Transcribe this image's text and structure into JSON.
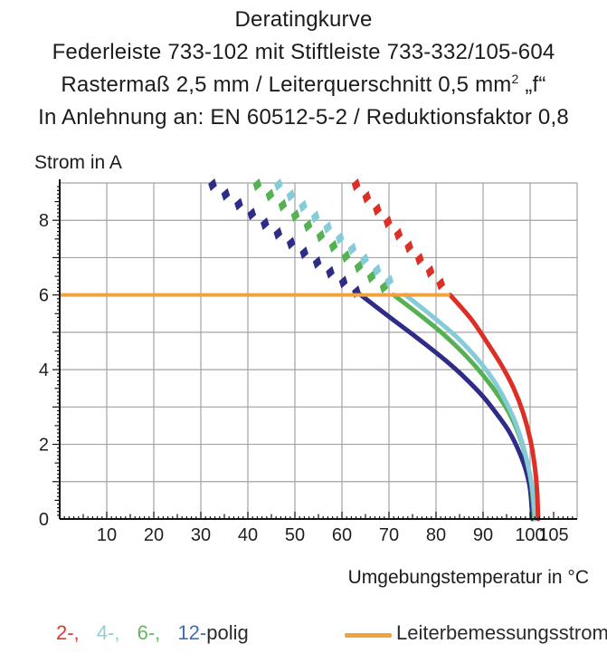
{
  "title": {
    "line1": "Deratingkurve",
    "line2": "Federleiste 733-102 mit Stiftleiste 733-332/105-604",
    "line3_pre": "Rastermaß 2,5 mm / Leiterquerschnitt 0,5 mm",
    "line3_sup": "2",
    "line3_post": " „f“",
    "line4": "In Anlehnung an: EN 60512-5-2 / Reduktionsfaktor 0,8"
  },
  "axes": {
    "ylabel": "Strom in A",
    "xlabel": "Umgebungstemperatur in °C"
  },
  "legend": {
    "poles": [
      {
        "label": "2-,",
        "color": "#d93a31"
      },
      {
        "label": "4-,",
        "color": "#8fd0d5"
      },
      {
        "label": "6-,",
        "color": "#62b65e"
      },
      {
        "label": "12-",
        "color": "#3e6db5"
      }
    ],
    "suffix": "polig",
    "rated_label": "Leiterbemessungsstrom",
    "rated_color": "#f0a240"
  },
  "chart_data": {
    "type": "line",
    "title": "Deratingkurve Federleiste 733-102 mit Stiftleiste 733-332/105-604",
    "xlabel": "Umgebungstemperatur in °C",
    "ylabel": "Strom in A",
    "xlim": [
      0,
      110
    ],
    "ylim": [
      0,
      9
    ],
    "x_tick_labels": [
      10,
      20,
      30,
      40,
      50,
      60,
      70,
      80,
      90,
      100,
      105
    ],
    "y_tick_labels": [
      0,
      2,
      4,
      6,
      8
    ],
    "grid": {
      "x_step": 10,
      "y_step": 1,
      "color": "#a3a3a3"
    },
    "axis_color": "#111111",
    "tick_label_color": "#1f1f1f",
    "rated_line": {
      "label": "Leiterbemessungsstrom",
      "y": 6,
      "x_from": 0,
      "x_to": 83,
      "color": "#f0a240"
    },
    "series": [
      {
        "name": "12-polig",
        "color": "#2e2c87",
        "dashed": [
          [
            32.5,
            8.95
          ],
          [
            64,
            6
          ]
        ],
        "solid": [
          [
            64,
            6
          ],
          [
            70,
            5.42
          ],
          [
            76,
            4.85
          ],
          [
            82,
            4.25
          ],
          [
            86,
            3.8
          ],
          [
            90,
            3.28
          ],
          [
            93,
            2.8
          ],
          [
            95.5,
            2.35
          ],
          [
            97.5,
            1.85
          ],
          [
            99,
            1.35
          ],
          [
            100,
            0.8
          ],
          [
            100.5,
            0
          ]
        ]
      },
      {
        "name": "6-polig",
        "color": "#55b151",
        "dashed": [
          [
            42,
            8.95
          ],
          [
            71,
            6
          ]
        ],
        "solid": [
          [
            71,
            6
          ],
          [
            77,
            5.42
          ],
          [
            82,
            4.9
          ],
          [
            86.5,
            4.35
          ],
          [
            90,
            3.85
          ],
          [
            93,
            3.35
          ],
          [
            95.5,
            2.85
          ],
          [
            97.5,
            2.3
          ],
          [
            99,
            1.7
          ],
          [
            100.2,
            1.0
          ],
          [
            100.9,
            0
          ]
        ]
      },
      {
        "name": "4-polig",
        "color": "#85ccd8",
        "dashed": [
          [
            46.5,
            8.95
          ],
          [
            73.5,
            6
          ]
        ],
        "solid": [
          [
            73.5,
            6
          ],
          [
            79,
            5.45
          ],
          [
            84,
            4.92
          ],
          [
            88,
            4.4
          ],
          [
            91.5,
            3.85
          ],
          [
            94.2,
            3.3
          ],
          [
            96.5,
            2.7
          ],
          [
            98.3,
            2.05
          ],
          [
            99.7,
            1.35
          ],
          [
            100.6,
            0.7
          ],
          [
            101.05,
            0
          ]
        ]
      },
      {
        "name": "2-polig",
        "color": "#dc2f26",
        "dashed": [
          [
            63,
            8.95
          ],
          [
            83,
            6
          ]
        ],
        "solid": [
          [
            83,
            6
          ],
          [
            87.5,
            5.35
          ],
          [
            91,
            4.7
          ],
          [
            94,
            4.1
          ],
          [
            96.5,
            3.5
          ],
          [
            98.5,
            2.85
          ],
          [
            100,
            2.15
          ],
          [
            101,
            1.4
          ],
          [
            101.5,
            0.7
          ],
          [
            101.7,
            0
          ]
        ]
      }
    ]
  }
}
